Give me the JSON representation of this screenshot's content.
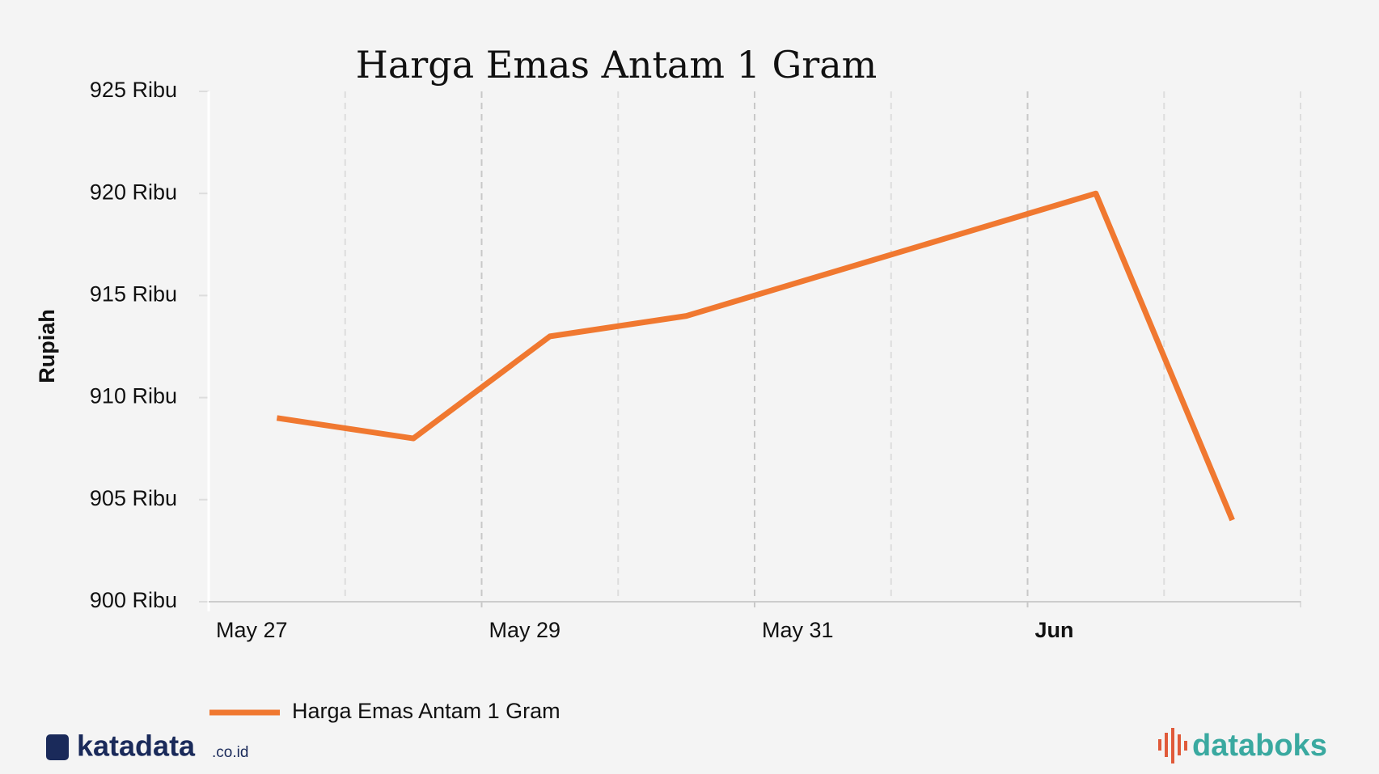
{
  "chart_data": {
    "type": "line",
    "title": "Harga Emas Antam 1 Gram",
    "y_label": "Rupiah",
    "x": [
      "05-27T12",
      "05-28T12",
      "05-29T12",
      "05-30T12",
      "05-31T12",
      "06-01T12",
      "06-02T12",
      "06-03T12"
    ],
    "series": [
      {
        "name": "Harga Emas Antam 1 Gram",
        "color": "#f07830",
        "values": [
          909000,
          908000,
          913000,
          914000,
          916000,
          918000,
          920000,
          904000
        ]
      }
    ],
    "xlim": [
      "05-27T00",
      "06-04T00"
    ],
    "xticks": [
      {
        "value": "05-27T00",
        "label": "May 27"
      },
      {
        "value": "05-29T00",
        "label": "May 29"
      },
      {
        "value": "05-31T00",
        "label": "May 31"
      },
      {
        "value": "06-02T00",
        "label": "Jun"
      }
    ],
    "xminorticks": [
      "05-28T00",
      "05-30T00",
      "06-01T00",
      "06-03T00"
    ],
    "ylim": [
      900000,
      925000
    ],
    "yticks": [
      {
        "value": 900000,
        "label": "900 Ribu"
      },
      {
        "value": 905000,
        "label": "905 Ribu"
      },
      {
        "value": 910000,
        "label": "910 Ribu"
      },
      {
        "value": 915000,
        "label": "915 Ribu"
      },
      {
        "value": 920000,
        "label": "920 Ribu"
      },
      {
        "value": 925000,
        "label": "925 Ribu"
      }
    ],
    "grid": true,
    "legend": "bottom-left"
  },
  "branding": {
    "left": "katadata",
    "left_suffix": ".co.id",
    "right": "databoks"
  }
}
